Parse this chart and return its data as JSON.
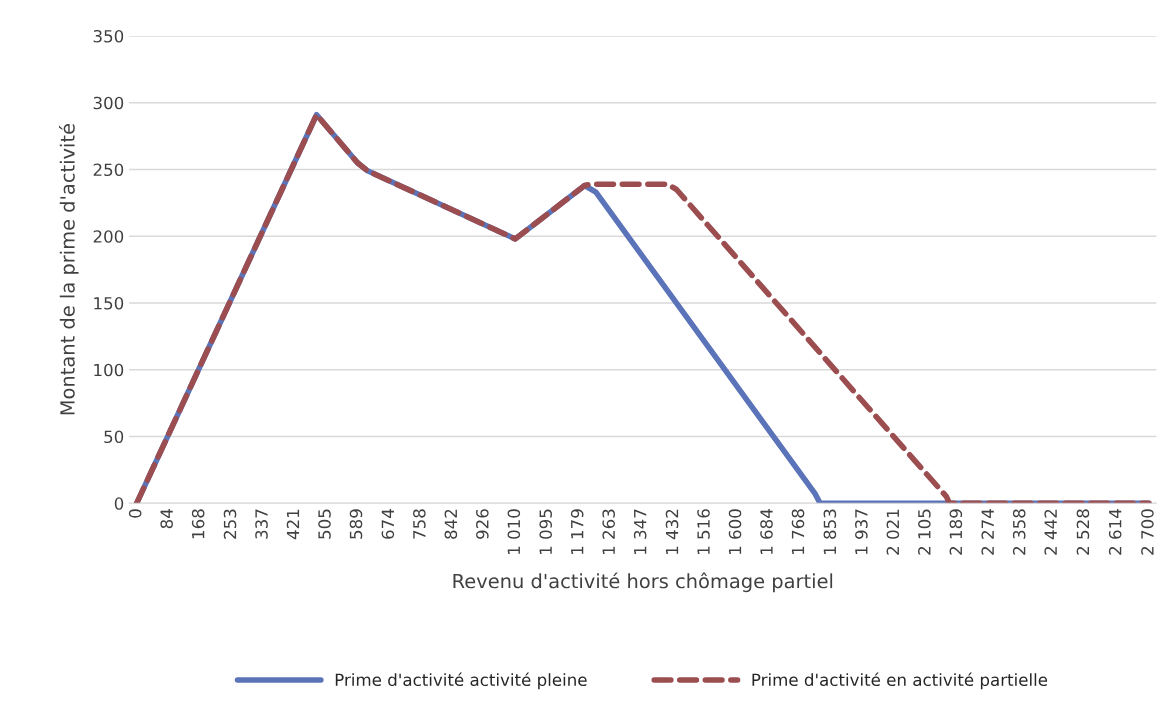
{
  "chart_data": {
    "type": "line",
    "xlabel": "Revenu d'activité hors chômage partiel",
    "ylabel": "Montant de la prime d'activité",
    "series": [
      {
        "name": "Prime d'activité activité pleine",
        "color": "#5b73b8",
        "line_style": "solid",
        "x": [
          0,
          480,
          589,
          616,
          1010,
          1195,
          1225,
          1810,
          1823,
          2700
        ],
        "values": [
          0,
          291,
          255,
          249,
          198,
          238,
          233,
          7,
          0,
          0
        ]
      },
      {
        "name": "Prime d'activité en activité partielle",
        "color": "#9c4d4f",
        "line_style": "dashed",
        "x": [
          0,
          480,
          589,
          616,
          1010,
          1195,
          1210,
          1416,
          1440,
          2160,
          2168,
          2700
        ],
        "values": [
          0,
          291,
          255,
          249,
          198,
          238,
          239,
          239,
          235,
          5,
          0,
          0
        ]
      }
    ],
    "xlim": [
      -20,
      2720
    ],
    "xticks": [
      0,
      84,
      168,
      253,
      337,
      421,
      505,
      589,
      674,
      758,
      842,
      926,
      {
        "value": 1010,
        "label": "1 010"
      },
      {
        "value": 1095,
        "label": "1 095"
      },
      {
        "value": 1179,
        "label": "1 179"
      },
      {
        "value": 1263,
        "label": "1 263"
      },
      {
        "value": 1347,
        "label": "1 347"
      },
      {
        "value": 1432,
        "label": "1 432"
      },
      {
        "value": 1516,
        "label": "1 516"
      },
      {
        "value": 1600,
        "label": "1 600"
      },
      {
        "value": 1684,
        "label": "1 684"
      },
      {
        "value": 1768,
        "label": "1 768"
      },
      {
        "value": 1853,
        "label": "1 853"
      },
      {
        "value": 1937,
        "label": "1 937"
      },
      {
        "value": 2021,
        "label": "2 021"
      },
      {
        "value": 2105,
        "label": "2 105"
      },
      {
        "value": 2189,
        "label": "2 189"
      },
      {
        "value": 2274,
        "label": "2 274"
      },
      {
        "value": 2358,
        "label": "2 358"
      },
      {
        "value": 2442,
        "label": "2 442"
      },
      {
        "value": 2528,
        "label": "2 528"
      },
      {
        "value": 2614,
        "label": "2 614"
      },
      {
        "value": 2700,
        "label": "2 700"
      }
    ],
    "ylim": [
      0,
      350
    ],
    "yticks": [
      0,
      50,
      100,
      150,
      200,
      250,
      300,
      350
    ],
    "grid": "y",
    "legend": "bottom"
  }
}
